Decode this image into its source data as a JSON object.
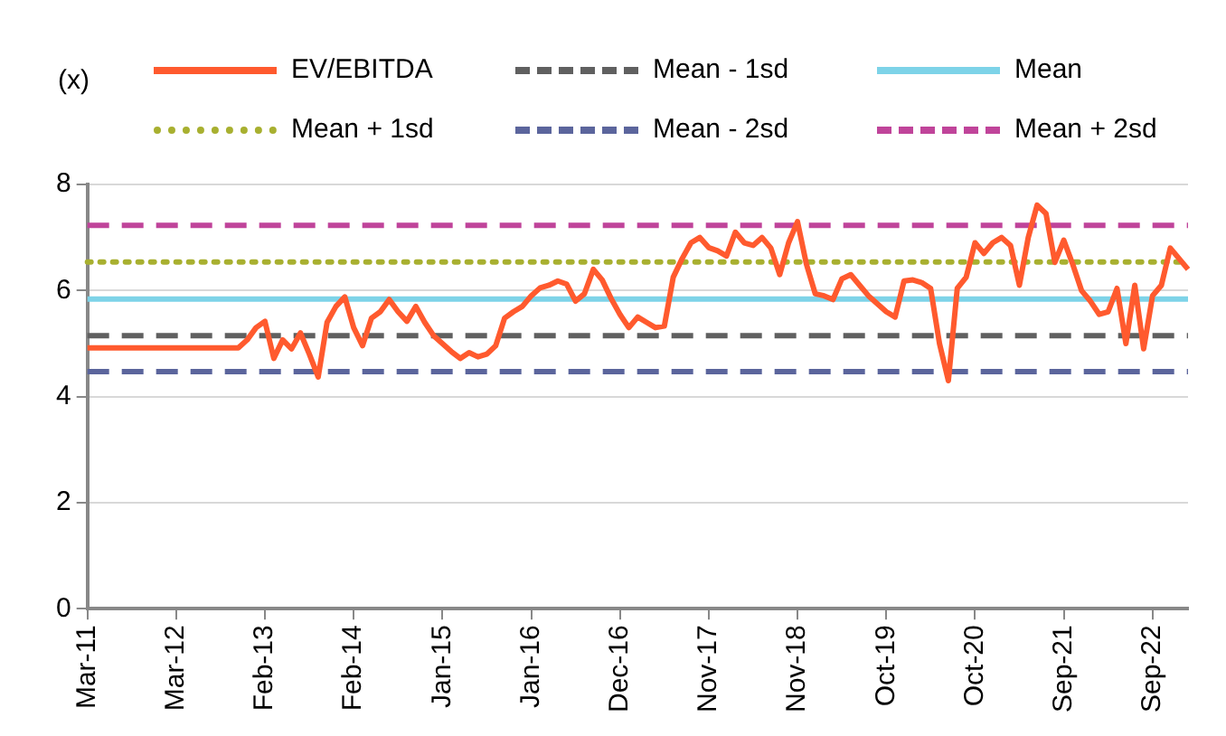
{
  "chart_data": {
    "type": "line",
    "ylabel": "(x)",
    "categories": [
      "Mar-11",
      null,
      null,
      null,
      null,
      null,
      null,
      null,
      null,
      null,
      "Mar-12",
      null,
      null,
      null,
      null,
      null,
      null,
      null,
      null,
      null,
      "Feb-13",
      null,
      null,
      null,
      null,
      null,
      null,
      null,
      null,
      null,
      "Feb-14",
      null,
      null,
      null,
      null,
      null,
      null,
      null,
      null,
      null,
      "Jan-15",
      null,
      null,
      null,
      null,
      null,
      null,
      null,
      null,
      null,
      "Jan-16",
      null,
      null,
      null,
      null,
      null,
      null,
      null,
      null,
      null,
      "Dec-16",
      null,
      null,
      null,
      null,
      null,
      null,
      null,
      null,
      null,
      "Nov-17",
      null,
      null,
      null,
      null,
      null,
      null,
      null,
      null,
      null,
      "Nov-18",
      null,
      null,
      null,
      null,
      null,
      null,
      null,
      null,
      null,
      "Oct-19",
      null,
      null,
      null,
      null,
      null,
      null,
      null,
      null,
      null,
      "Oct-20",
      null,
      null,
      null,
      null,
      null,
      null,
      null,
      null,
      null,
      "Sep-21",
      null,
      null,
      null,
      null,
      null,
      null,
      null,
      null,
      null,
      "Sep-22",
      null,
      null,
      null,
      null
    ],
    "series": [
      {
        "name": "EV/EBITDA",
        "color": "#ff5a2e",
        "line_style": "solid",
        "values": [
          4.92,
          4.92,
          4.92,
          4.92,
          4.92,
          4.92,
          4.92,
          4.92,
          4.92,
          4.92,
          4.92,
          4.92,
          4.92,
          4.92,
          4.92,
          4.92,
          4.92,
          4.92,
          5.07,
          5.3,
          5.42,
          4.72,
          5.07,
          4.9,
          5.2,
          4.8,
          4.37,
          5.4,
          5.7,
          5.88,
          5.3,
          4.96,
          5.48,
          5.6,
          5.83,
          5.6,
          5.42,
          5.7,
          5.4,
          5.15,
          5.0,
          4.85,
          4.72,
          4.83,
          4.75,
          4.8,
          4.96,
          5.48,
          5.6,
          5.7,
          5.9,
          6.05,
          6.1,
          6.18,
          6.12,
          5.8,
          5.94,
          6.4,
          6.2,
          5.85,
          5.55,
          5.3,
          5.5,
          5.4,
          5.3,
          5.33,
          6.25,
          6.6,
          6.9,
          7.0,
          6.81,
          6.75,
          6.65,
          7.1,
          6.9,
          6.85,
          7.0,
          6.8,
          6.3,
          6.9,
          7.3,
          6.5,
          5.94,
          5.9,
          5.83,
          6.22,
          6.3,
          6.1,
          5.9,
          5.75,
          5.6,
          5.5,
          6.18,
          6.2,
          6.15,
          6.04,
          5.0,
          4.3,
          6.04,
          6.25,
          6.9,
          6.7,
          6.9,
          7.0,
          6.85,
          6.1,
          7.0,
          7.61,
          7.45,
          6.53,
          6.95,
          6.5,
          6.0,
          5.8,
          5.55,
          5.6,
          6.04,
          5.0,
          6.1,
          4.9,
          5.9,
          6.1,
          6.8,
          6.6,
          6.4
        ]
      }
    ],
    "ref_lines": [
      {
        "axis": "y",
        "value": 5.15,
        "label": "Mean - 1sd",
        "color": "#606060",
        "line_style": "dashed"
      },
      {
        "axis": "y",
        "value": 5.84,
        "label": "Mean",
        "color": "#7dd3e8",
        "line_style": "solid"
      },
      {
        "axis": "y",
        "value": 6.54,
        "label": "Mean + 1sd",
        "color": "#a8b030",
        "line_style": "dotted"
      },
      {
        "axis": "y",
        "value": 4.47,
        "label": "Mean - 2sd",
        "color": "#5b659c",
        "line_style": "dashed"
      },
      {
        "axis": "y",
        "value": 7.23,
        "label": "Mean + 2sd",
        "color": "#c0449a",
        "line_style": "dashed"
      }
    ],
    "ylim": [
      0,
      8
    ],
    "yticks": [
      0,
      2,
      4,
      6,
      8
    ],
    "grid": "y",
    "legend": "top"
  }
}
